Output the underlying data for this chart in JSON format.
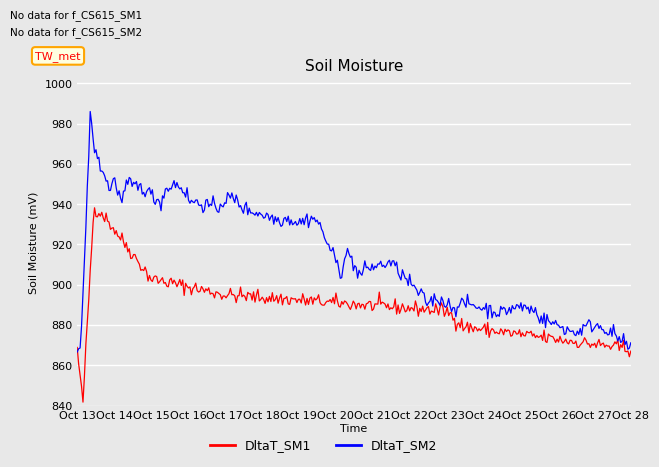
{
  "title": "Soil Moisture",
  "ylabel": "Soil Moisture (mV)",
  "xlabel": "Time",
  "no_data_text1": "No data for f_CS615_SM1",
  "no_data_text2": "No data for f_CS615_SM2",
  "annotation_text": "TW_met",
  "ylim": [
    840,
    1002
  ],
  "yticks": [
    840,
    860,
    880,
    900,
    920,
    940,
    960,
    980,
    1000
  ],
  "xtick_labels": [
    "Oct 13",
    "Oct 14",
    "Oct 15",
    "Oct 16",
    "Oct 17",
    "Oct 18",
    "Oct 19",
    "Oct 20",
    "Oct 21",
    "Oct 22",
    "Oct 23",
    "Oct 24",
    "Oct 25",
    "Oct 26",
    "Oct 27",
    "Oct 28"
  ],
  "color_sm1": "#ff0000",
  "color_sm2": "#0000ff",
  "legend_sm1": "DltaT_SM1",
  "legend_sm2": "DltaT_SM2",
  "bg_color": "#e8e8e8",
  "fig_bg_color": "#e8e8e8",
  "grid_color": "#ffffff",
  "title_fontsize": 11,
  "label_fontsize": 8,
  "tick_fontsize": 8
}
